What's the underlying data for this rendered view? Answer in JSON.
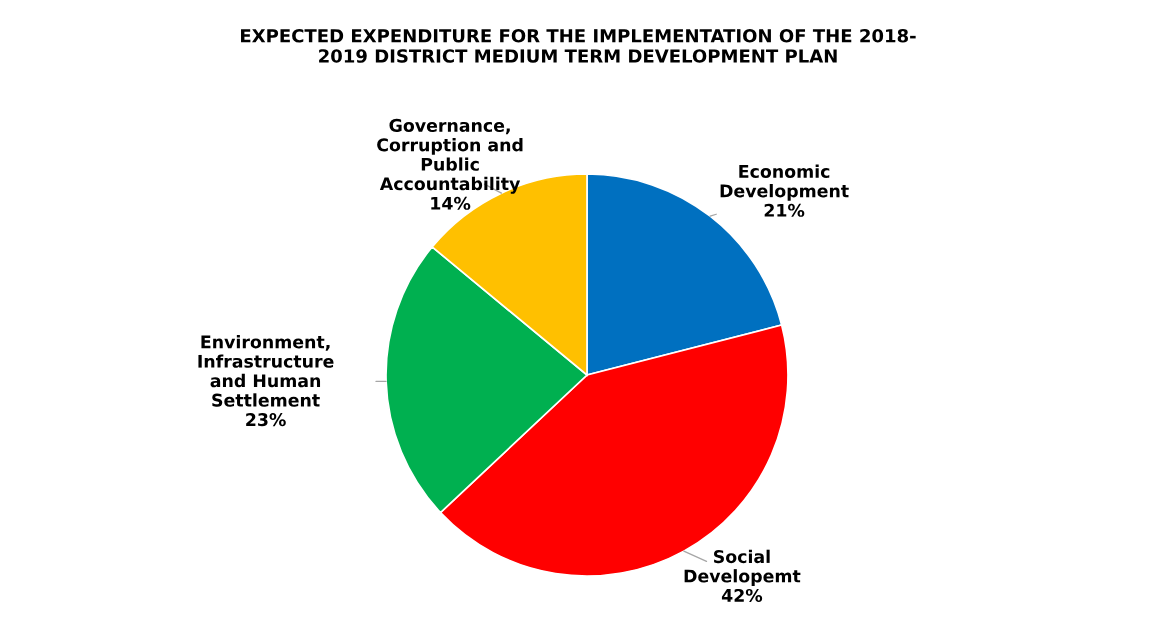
{
  "chart_data": {
    "type": "pie",
    "title": "EXPECTED EXPENDITURE FOR THE IMPLEMENTATION OF THE 2018-\n2019 DISTRICT MEDIUM TERM DEVELOPMENT PLAN",
    "categories": [
      "Economic\nDevelopment",
      "Social\nDevelopemt",
      "Environment,\nInfrastructure\nand Human\nSettlement",
      "Governance,\nCorruption and\nPublic\nAccountability"
    ],
    "values": [
      21,
      42,
      23,
      14
    ],
    "value_labels": [
      "21%",
      "42%",
      "23%",
      "14%"
    ],
    "colors": [
      "#0070c0",
      "#ff0000",
      "#00b050",
      "#ffc000"
    ],
    "legend": false
  }
}
